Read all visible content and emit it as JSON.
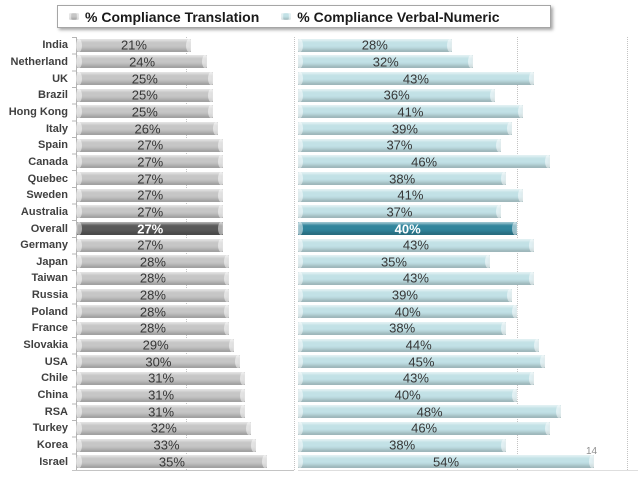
{
  "legend": {
    "items": [
      {
        "label": "% Compliance Translation",
        "color": "#c6c6c6"
      },
      {
        "label": "% Compliance Verbal-Numeric",
        "color": "#c2e1e6"
      }
    ]
  },
  "page_number": "14",
  "chart_data": {
    "type": "bar",
    "orientation": "horizontal",
    "title": "",
    "categories": [
      "India",
      "Netherland",
      "UK",
      "Brazil",
      "Hong Kong",
      "Italy",
      "Spain",
      "Canada",
      "Quebec",
      "Sweden",
      "Australia",
      "Overall",
      "Germany",
      "Japan",
      "Taiwan",
      "Russia",
      "Poland",
      "France",
      "Slovakia",
      "USA",
      "Chile",
      "China",
      "RSA",
      "Turkey",
      "Korea",
      "Israel"
    ],
    "series": [
      {
        "name": "% Compliance Translation",
        "values": [
          21,
          24,
          25,
          25,
          25,
          26,
          27,
          27,
          27,
          27,
          27,
          27,
          27,
          28,
          28,
          28,
          28,
          28,
          29,
          30,
          31,
          31,
          31,
          32,
          33,
          35
        ],
        "color": "#c6c6c6",
        "highlight_color": "#595959",
        "axis_range": [
          0,
          40
        ],
        "gridline_ticks": [
          20,
          40
        ]
      },
      {
        "name": "% Compliance Verbal-Numeric",
        "values": [
          28,
          32,
          43,
          36,
          41,
          39,
          37,
          46,
          38,
          41,
          37,
          40,
          43,
          35,
          43,
          39,
          40,
          38,
          44,
          45,
          43,
          40,
          48,
          46,
          38,
          54
        ],
        "color": "#c2e1e6",
        "highlight_color": "#31859c",
        "axis_range": [
          0,
          62
        ],
        "gridline_ticks": [
          40,
          60
        ]
      }
    ],
    "highlight_category": "Overall",
    "value_suffix": "%",
    "data_labels": true,
    "legend_position": "top",
    "grid": "dashed-vertical"
  }
}
